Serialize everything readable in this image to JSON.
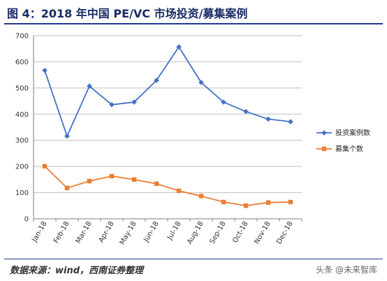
{
  "figure": {
    "title": "图 4：2018 年中国 PE/VC 市场投资/募集案例",
    "source": "数据来源：wind，西南证券整理",
    "watermark": "头条 @未来智库"
  },
  "chart_data": {
    "type": "line",
    "categories": [
      "Jan-18",
      "Feb-18",
      "Mar-18",
      "Apr-18",
      "May-18",
      "Jun-18",
      "Jul-18",
      "Aug-18",
      "Sep-18",
      "Oct-18",
      "Nov-18",
      "Dec-18"
    ],
    "series": [
      {
        "name": "投资案例数",
        "color": "#4472C4",
        "marker": "diamond",
        "values": [
          567,
          316,
          507,
          436,
          446,
          529,
          657,
          521,
          446,
          410,
          381,
          371
        ]
      },
      {
        "name": "募集个数",
        "color": "#ED7D31",
        "marker": "square",
        "values": [
          201,
          118,
          144,
          163,
          150,
          134,
          107,
          87,
          64,
          50,
          62,
          64
        ]
      }
    ],
    "ylim": [
      0,
      700
    ],
    "yticks": [
      0,
      100,
      200,
      300,
      400,
      500,
      600,
      700
    ],
    "grid": true,
    "legend": "right"
  }
}
